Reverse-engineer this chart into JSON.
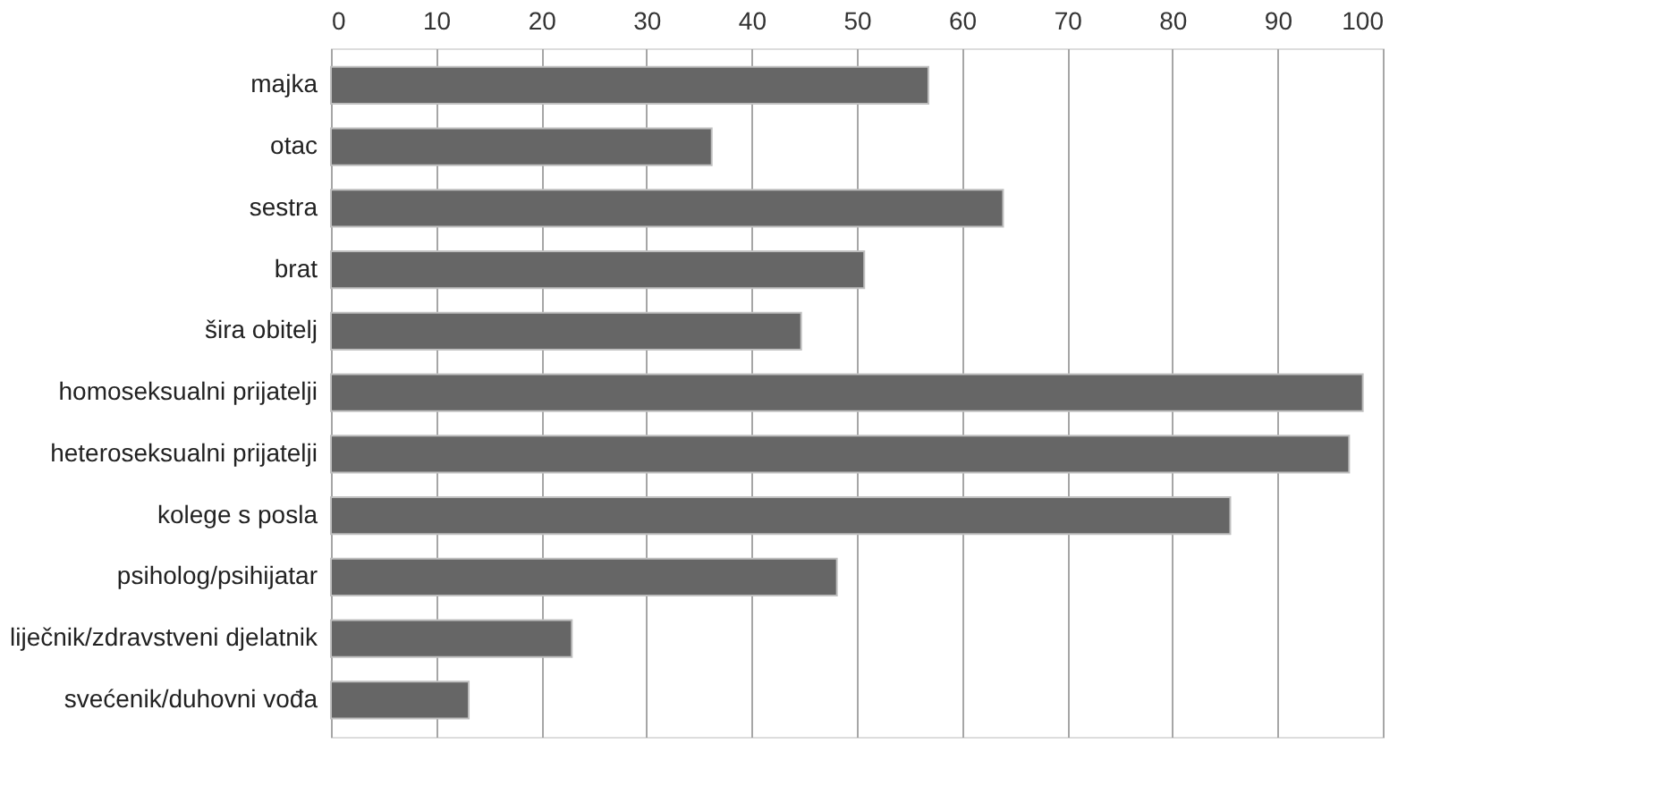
{
  "chart_data": {
    "type": "bar",
    "orientation": "horizontal",
    "categories": [
      "majka",
      "otac",
      "sestra",
      "brat",
      "šira obitelj",
      "homoseksualni prijatelji",
      "heteroseksualni prijatelji",
      "kolege s posla",
      "psiholog/psihijatar",
      "liječnik/zdravstveni djelatnik",
      "svećenik/duhovni vođa"
    ],
    "values": [
      56.8,
      36.2,
      63.9,
      50.7,
      44.7,
      98.1,
      96.8,
      85.5,
      48.1,
      22.9,
      13.1
    ],
    "color": "#666666",
    "xlim": [
      0,
      100
    ],
    "xticks": [
      0,
      10,
      20,
      30,
      40,
      50,
      60,
      70,
      80,
      90,
      100
    ],
    "grid": "x"
  }
}
